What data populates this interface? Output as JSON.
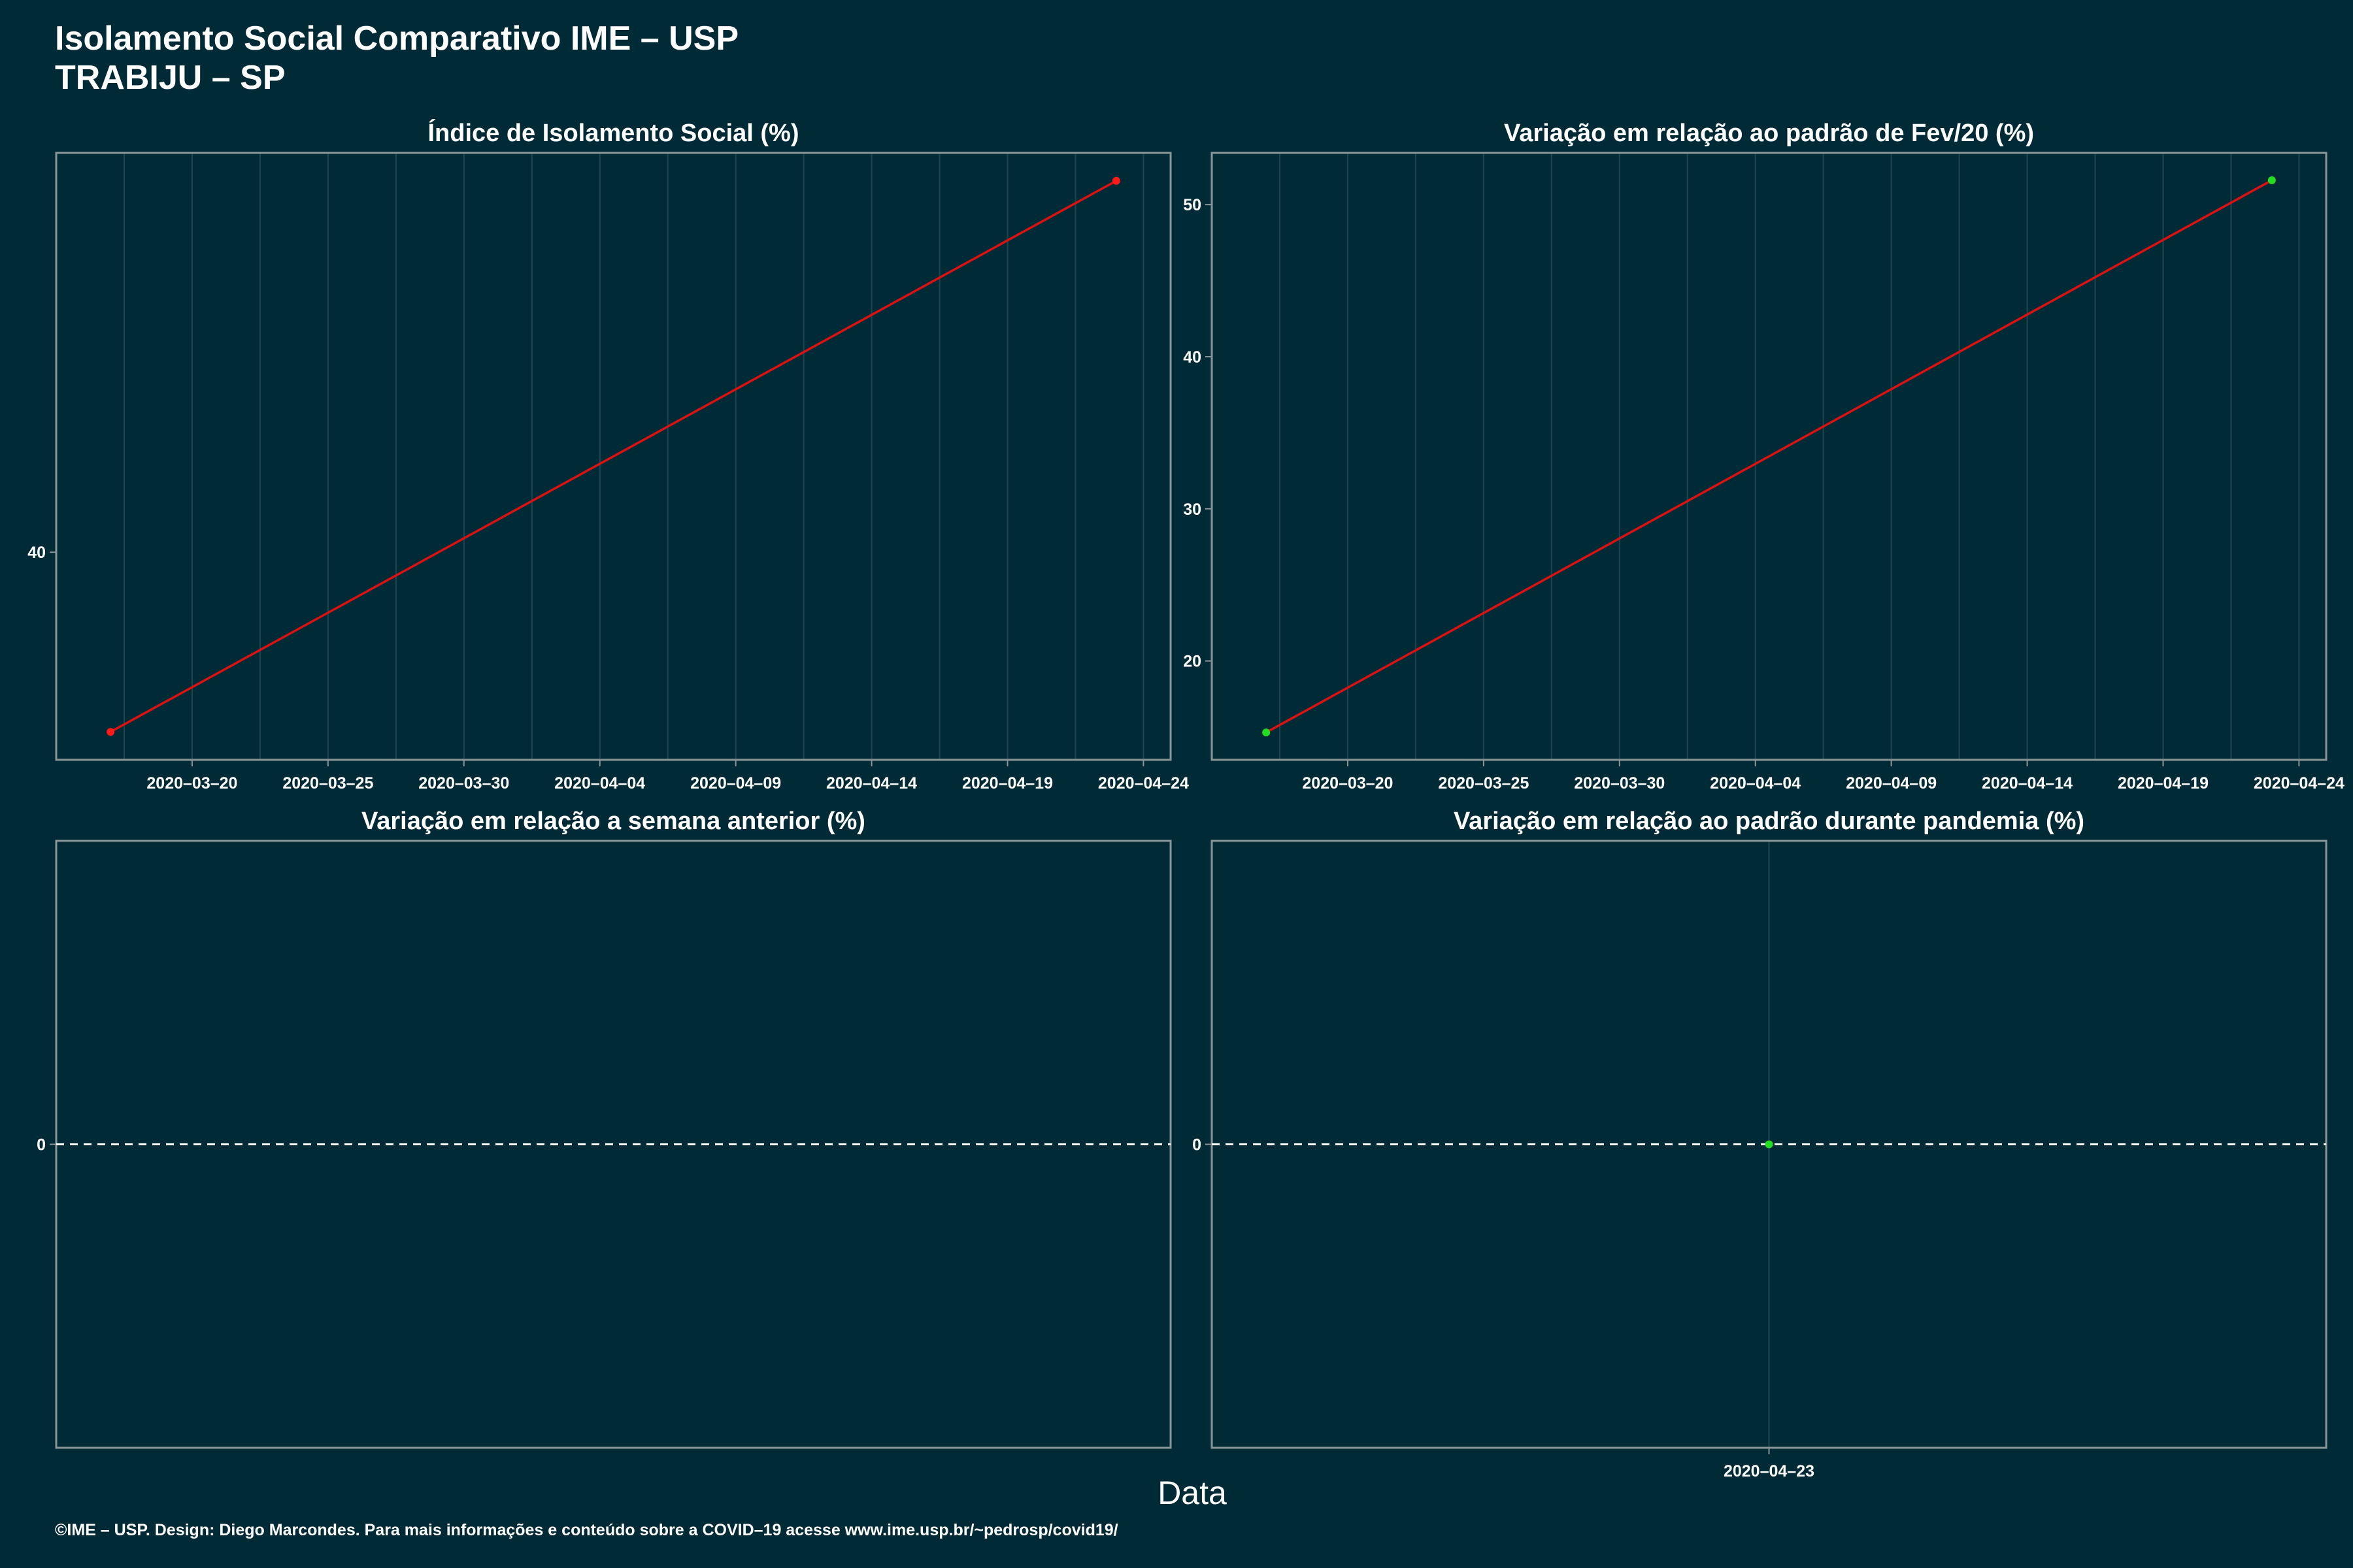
{
  "header": {
    "title_line1": "Isolamento Social Comparativo IME – USP",
    "title_line2": "TRABIJU – SP"
  },
  "footer": {
    "x_axis_label": "Data",
    "credits": "©IME – USP. Design: Diego Marcondes. Para mais informações e conteúdo sobre a COVID–19 acesse www.ime.usp.br/~pedrosp/covid19/"
  },
  "colors": {
    "background": "#002b36",
    "panel_border": "#8a9597",
    "grid": "#1e4650",
    "line": "#dd1111",
    "point_red": "#ff1a1a",
    "point_green": "#22dd22",
    "zero_line": "#ffffff"
  },
  "chart_data": [
    {
      "type": "line",
      "title": "Índice de Isolamento Social (%)",
      "x": [
        "2020-03-17",
        "2020-04-23"
      ],
      "series": [
        {
          "values": [
            35.5,
            49.3
          ],
          "point_color": "red"
        }
      ],
      "x_ticks": [
        "2020-03-20",
        "2020-03-25",
        "2020-03-30",
        "2020-04-04",
        "2020-04-09",
        "2020-04-14",
        "2020-04-19",
        "2020-04-24"
      ],
      "y_ticks": [
        40
      ],
      "xlim": [
        "2020-03-15",
        "2020-04-25"
      ],
      "ylim": [
        34.8,
        50.0
      ],
      "grid": true
    },
    {
      "type": "line",
      "title": "Variação em relação ao padrão de Fev/20 (%)",
      "x": [
        "2020-03-17",
        "2020-04-23"
      ],
      "series": [
        {
          "values": [
            15.3,
            51.6
          ],
          "point_color": "green"
        }
      ],
      "x_ticks": [
        "2020-03-20",
        "2020-03-25",
        "2020-03-30",
        "2020-04-04",
        "2020-04-09",
        "2020-04-14",
        "2020-04-19",
        "2020-04-24"
      ],
      "y_ticks": [
        20,
        30,
        40,
        50
      ],
      "xlim": [
        "2020-03-15",
        "2020-04-25"
      ],
      "ylim": [
        13.5,
        53.4
      ],
      "grid": true
    },
    {
      "type": "line",
      "title": "Variação em relação a semana anterior (%)",
      "x": [],
      "series": [],
      "x_ticks": [],
      "y_ticks": [
        0
      ],
      "ylim": [
        -1,
        1
      ],
      "reference_line": 0,
      "grid": false
    },
    {
      "type": "scatter",
      "title": "Variação em relação ao padrão durante pandemia (%)",
      "x": [
        "2020-04-23"
      ],
      "series": [
        {
          "values": [
            0
          ],
          "point_color": "green"
        }
      ],
      "x_ticks": [
        "2020-04-23"
      ],
      "y_ticks": [
        0
      ],
      "xlim": [
        "2020-04-22",
        "2020-04-24"
      ],
      "ylim": [
        -1,
        1
      ],
      "reference_line": 0,
      "grid": true
    }
  ]
}
